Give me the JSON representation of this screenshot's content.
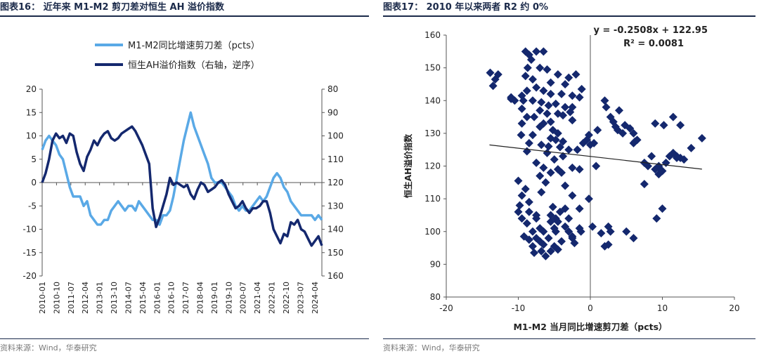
{
  "left": {
    "title": "图表16： 近年来 M1-M2 剪刀差对恒生 AH 溢价指数",
    "source": "资料来源：Wind，华泰研究"
  },
  "right": {
    "title": "图表17： 2010 年以来两者 R2 约 0%",
    "source": "资料来源：Wind，华泰研究"
  },
  "chart_data": [
    {
      "type": "line",
      "legend_placement": "top-center",
      "x_tick_labels": [
        "2010-01",
        "2010-10",
        "2011-07",
        "2012-04",
        "2013-01",
        "2013-10",
        "2014-07",
        "2015-04",
        "2016-01",
        "2016-10",
        "2017-07",
        "2018-04",
        "2019-01",
        "2019-10",
        "2020-07",
        "2021-04",
        "2022-01",
        "2022-10",
        "2023-07",
        "2024-04"
      ],
      "y_left_ticks": [
        "20",
        "15",
        "10",
        "5",
        "0",
        "-5",
        "-10",
        "-15",
        "-20"
      ],
      "y_left_range": [
        -20,
        20
      ],
      "y_right_ticks": [
        "80",
        "90",
        "100",
        "110",
        "120",
        "130",
        "140",
        "150",
        "160"
      ],
      "y_right_range": [
        80,
        160
      ],
      "y_right_reversed": true,
      "grid": false,
      "series": [
        {
          "name": "M1-M2同比增速剪刀差（pcts）",
          "axis": "left",
          "color": "#5aa9e6",
          "values": [
            7,
            9,
            10,
            9,
            8,
            6,
            5,
            2,
            -1,
            -3,
            -3,
            -3,
            -5,
            -4,
            -7,
            -8,
            -9,
            -9,
            -8,
            -8,
            -6,
            -5,
            -4,
            -5,
            -6,
            -5,
            -5,
            -6,
            -4,
            -5,
            -6,
            -7,
            -8,
            -8,
            -9,
            -7,
            -7,
            -6,
            -3,
            1,
            5,
            9,
            12,
            15,
            12,
            10,
            8,
            6,
            4,
            1,
            0,
            0,
            0,
            -1,
            -2,
            -3,
            -5,
            -6,
            -5,
            -6,
            -6,
            -5,
            -4,
            -3,
            -4,
            -3,
            -1,
            1,
            2,
            1,
            -1,
            -2,
            -4,
            -5,
            -6,
            -7,
            -7,
            -7,
            -7,
            -8,
            -7,
            -8
          ]
        },
        {
          "name": "恒生AH溢价指数（右轴，逆序）",
          "axis": "right",
          "color": "#14286e",
          "values": [
            120,
            116,
            110,
            102,
            99,
            101,
            100,
            103,
            99,
            100,
            107,
            112,
            115,
            109,
            106,
            102,
            104,
            101,
            99,
            98,
            101,
            102,
            101,
            99,
            98,
            97,
            96,
            98,
            101,
            104,
            108,
            112,
            131,
            139,
            135,
            130,
            125,
            118,
            121,
            120,
            121,
            122,
            121,
            125,
            127,
            123,
            120,
            121,
            124,
            123,
            122,
            120,
            119,
            121,
            125,
            128,
            131,
            130,
            128,
            131,
            133,
            131,
            131,
            130,
            128,
            128,
            133,
            140,
            143,
            146,
            142,
            143,
            137,
            138,
            136,
            140,
            141,
            144,
            147,
            145,
            143,
            147
          ]
        }
      ]
    },
    {
      "type": "scatter",
      "x_ticks": [
        "-20",
        "-10",
        "0",
        "10",
        "20"
      ],
      "xlim": [
        -20,
        20
      ],
      "y_ticks": [
        "80",
        "90",
        "100",
        "110",
        "120",
        "130",
        "140",
        "150",
        "160"
      ],
      "ylim": [
        80,
        160
      ],
      "xlabel": "M1-M2 当月同比增速剪刀差（pcts）",
      "ylabel": "恒生AH溢价指数",
      "annotation": [
        "y = -0.2508x + 122.95",
        "R² = 0.0081"
      ],
      "grid": false,
      "color": "#14286e",
      "trendline": {
        "slope": -0.2508,
        "intercept": 122.95,
        "x_range": [
          -14,
          15.5
        ]
      },
      "points": [
        [
          -13.9,
          148.5
        ],
        [
          -13.2,
          146.5
        ],
        [
          -13.5,
          144.5
        ],
        [
          -12.8,
          148
        ],
        [
          -11,
          141
        ],
        [
          -11,
          140.5
        ],
        [
          -9.5,
          141.5
        ],
        [
          -10.5,
          140
        ],
        [
          -9,
          155
        ],
        [
          -8.5,
          154
        ],
        [
          -8.2,
          152.5
        ],
        [
          -7.5,
          155
        ],
        [
          -6.5,
          155
        ],
        [
          -8.7,
          150
        ],
        [
          -7,
          150
        ],
        [
          -6,
          149.5
        ],
        [
          -4.5,
          148
        ],
        [
          -3,
          147
        ],
        [
          -2,
          148
        ],
        [
          -9,
          147.5
        ],
        [
          -8,
          146.5
        ],
        [
          -5.5,
          145.5
        ],
        [
          -3.5,
          145
        ],
        [
          -1.2,
          143.5
        ],
        [
          -8.8,
          143
        ],
        [
          -7.5,
          144
        ],
        [
          -6.5,
          143
        ],
        [
          -5.5,
          142
        ],
        [
          -4,
          142
        ],
        [
          -2.5,
          141.5
        ],
        [
          -1.5,
          141
        ],
        [
          -9.3,
          140
        ],
        [
          -8,
          140
        ],
        [
          -6.8,
          139.5
        ],
        [
          -5.8,
          138.5
        ],
        [
          -4.8,
          139
        ],
        [
          -3.5,
          138
        ],
        [
          -2.5,
          138
        ],
        [
          -9.5,
          137.5
        ],
        [
          -7,
          137
        ],
        [
          -6,
          136
        ],
        [
          -4.5,
          136
        ],
        [
          -3.8,
          135.5
        ],
        [
          -2.8,
          136.5
        ],
        [
          -8.8,
          135
        ],
        [
          -7.8,
          135
        ],
        [
          -2.5,
          134
        ],
        [
          -9.5,
          133
        ],
        [
          -6.5,
          133
        ],
        [
          -5.5,
          133.5
        ],
        [
          -7,
          132
        ],
        [
          -5.2,
          131
        ],
        [
          -4.5,
          130
        ],
        [
          -9.6,
          129.5
        ],
        [
          -8,
          129.5
        ],
        [
          -5.5,
          128.5
        ],
        [
          -4.8,
          128
        ],
        [
          -3.8,
          127.5
        ],
        [
          -8.5,
          127
        ],
        [
          -6.8,
          126.5
        ],
        [
          -5.8,
          126
        ],
        [
          -4.2,
          125.8
        ],
        [
          -3,
          125
        ],
        [
          -1.8,
          125
        ],
        [
          -1,
          127
        ],
        [
          -8.8,
          124.5
        ],
        [
          -6,
          124
        ],
        [
          -3.8,
          123
        ],
        [
          -5,
          122
        ],
        [
          -7.5,
          121
        ],
        [
          -6.5,
          119.5
        ],
        [
          -4.5,
          119
        ],
        [
          -2.5,
          119.5
        ],
        [
          -1.5,
          119
        ],
        [
          -5.5,
          118
        ],
        [
          -4,
          118
        ],
        [
          -7,
          117
        ],
        [
          -10,
          115.5
        ],
        [
          -6.2,
          115
        ],
        [
          -3.5,
          114
        ],
        [
          -9,
          113
        ],
        [
          -6.8,
          112
        ],
        [
          -9.5,
          111
        ],
        [
          -2.5,
          111
        ],
        [
          -8.5,
          109
        ],
        [
          -9.8,
          108
        ],
        [
          -5.2,
          107.5
        ],
        [
          -3.5,
          107
        ],
        [
          -1.5,
          107
        ],
        [
          -10,
          106
        ],
        [
          -8.5,
          106
        ],
        [
          -7.5,
          105
        ],
        [
          -5.5,
          105
        ],
        [
          -4.2,
          106
        ],
        [
          -9.5,
          104
        ],
        [
          -7.5,
          104
        ],
        [
          -4.8,
          104
        ],
        [
          -3,
          104
        ],
        [
          -5.5,
          103
        ],
        [
          -4.5,
          103
        ],
        [
          -8.8,
          102.5
        ],
        [
          -7,
          101
        ],
        [
          -5,
          101
        ],
        [
          -3.5,
          101.5
        ],
        [
          -8,
          100
        ],
        [
          -6.5,
          100
        ],
        [
          -4.8,
          100
        ],
        [
          -3,
          100
        ],
        [
          -1.3,
          100
        ],
        [
          -9.2,
          98.5
        ],
        [
          -7.5,
          98
        ],
        [
          -5.8,
          98
        ],
        [
          -2.5,
          98
        ],
        [
          -8.5,
          97.5
        ],
        [
          -7,
          97
        ],
        [
          -4,
          97
        ],
        [
          -8,
          95.5
        ],
        [
          -6.5,
          96
        ],
        [
          -5,
          95.5
        ],
        [
          -2.2,
          96.5
        ],
        [
          -7.8,
          93.5
        ],
        [
          -6.8,
          94
        ],
        [
          -5.5,
          94
        ],
        [
          -4.5,
          94.5
        ],
        [
          -6.2,
          92.5
        ],
        [
          -2.5,
          98.5
        ],
        [
          -1.5,
          101
        ],
        [
          -0.2,
          129.5
        ],
        [
          0.5,
          127
        ],
        [
          0,
          126.5
        ],
        [
          -0.5,
          128
        ],
        [
          1,
          131
        ],
        [
          0.8,
          120
        ],
        [
          -0.2,
          110
        ],
        [
          0.3,
          101.5
        ],
        [
          1.5,
          99.5
        ],
        [
          2,
          95.5
        ],
        [
          2.5,
          96
        ],
        [
          2.8,
          100
        ],
        [
          2.5,
          101.5
        ],
        [
          2,
          140
        ],
        [
          2.2,
          138
        ],
        [
          2.8,
          135
        ],
        [
          3.2,
          133.5
        ],
        [
          4,
          137
        ],
        [
          3.5,
          132
        ],
        [
          3.8,
          131
        ],
        [
          4.5,
          130
        ],
        [
          4.8,
          132.5
        ],
        [
          5.5,
          131.5
        ],
        [
          6,
          130
        ],
        [
          6.5,
          128
        ],
        [
          6,
          127
        ],
        [
          6.2,
          127.5
        ],
        [
          5,
          100
        ],
        [
          6,
          98
        ],
        [
          7.5,
          121
        ],
        [
          8,
          120
        ],
        [
          7.5,
          114.5
        ],
        [
          8.5,
          123
        ],
        [
          9,
          119
        ],
        [
          9.5,
          120
        ],
        [
          10,
          118.5
        ],
        [
          10.5,
          121
        ],
        [
          9.5,
          119.5
        ],
        [
          9.5,
          117.5
        ],
        [
          10,
          107
        ],
        [
          9.2,
          104
        ],
        [
          9,
          133
        ],
        [
          10.2,
          132.5
        ],
        [
          11,
          123
        ],
        [
          11.5,
          124
        ],
        [
          12,
          123
        ],
        [
          12.5,
          122.5
        ],
        [
          13,
          122
        ],
        [
          11.5,
          135
        ],
        [
          12.5,
          132.5
        ],
        [
          14,
          125.5
        ],
        [
          15.5,
          128.5
        ],
        [
          12,
          122.5
        ]
      ]
    }
  ]
}
